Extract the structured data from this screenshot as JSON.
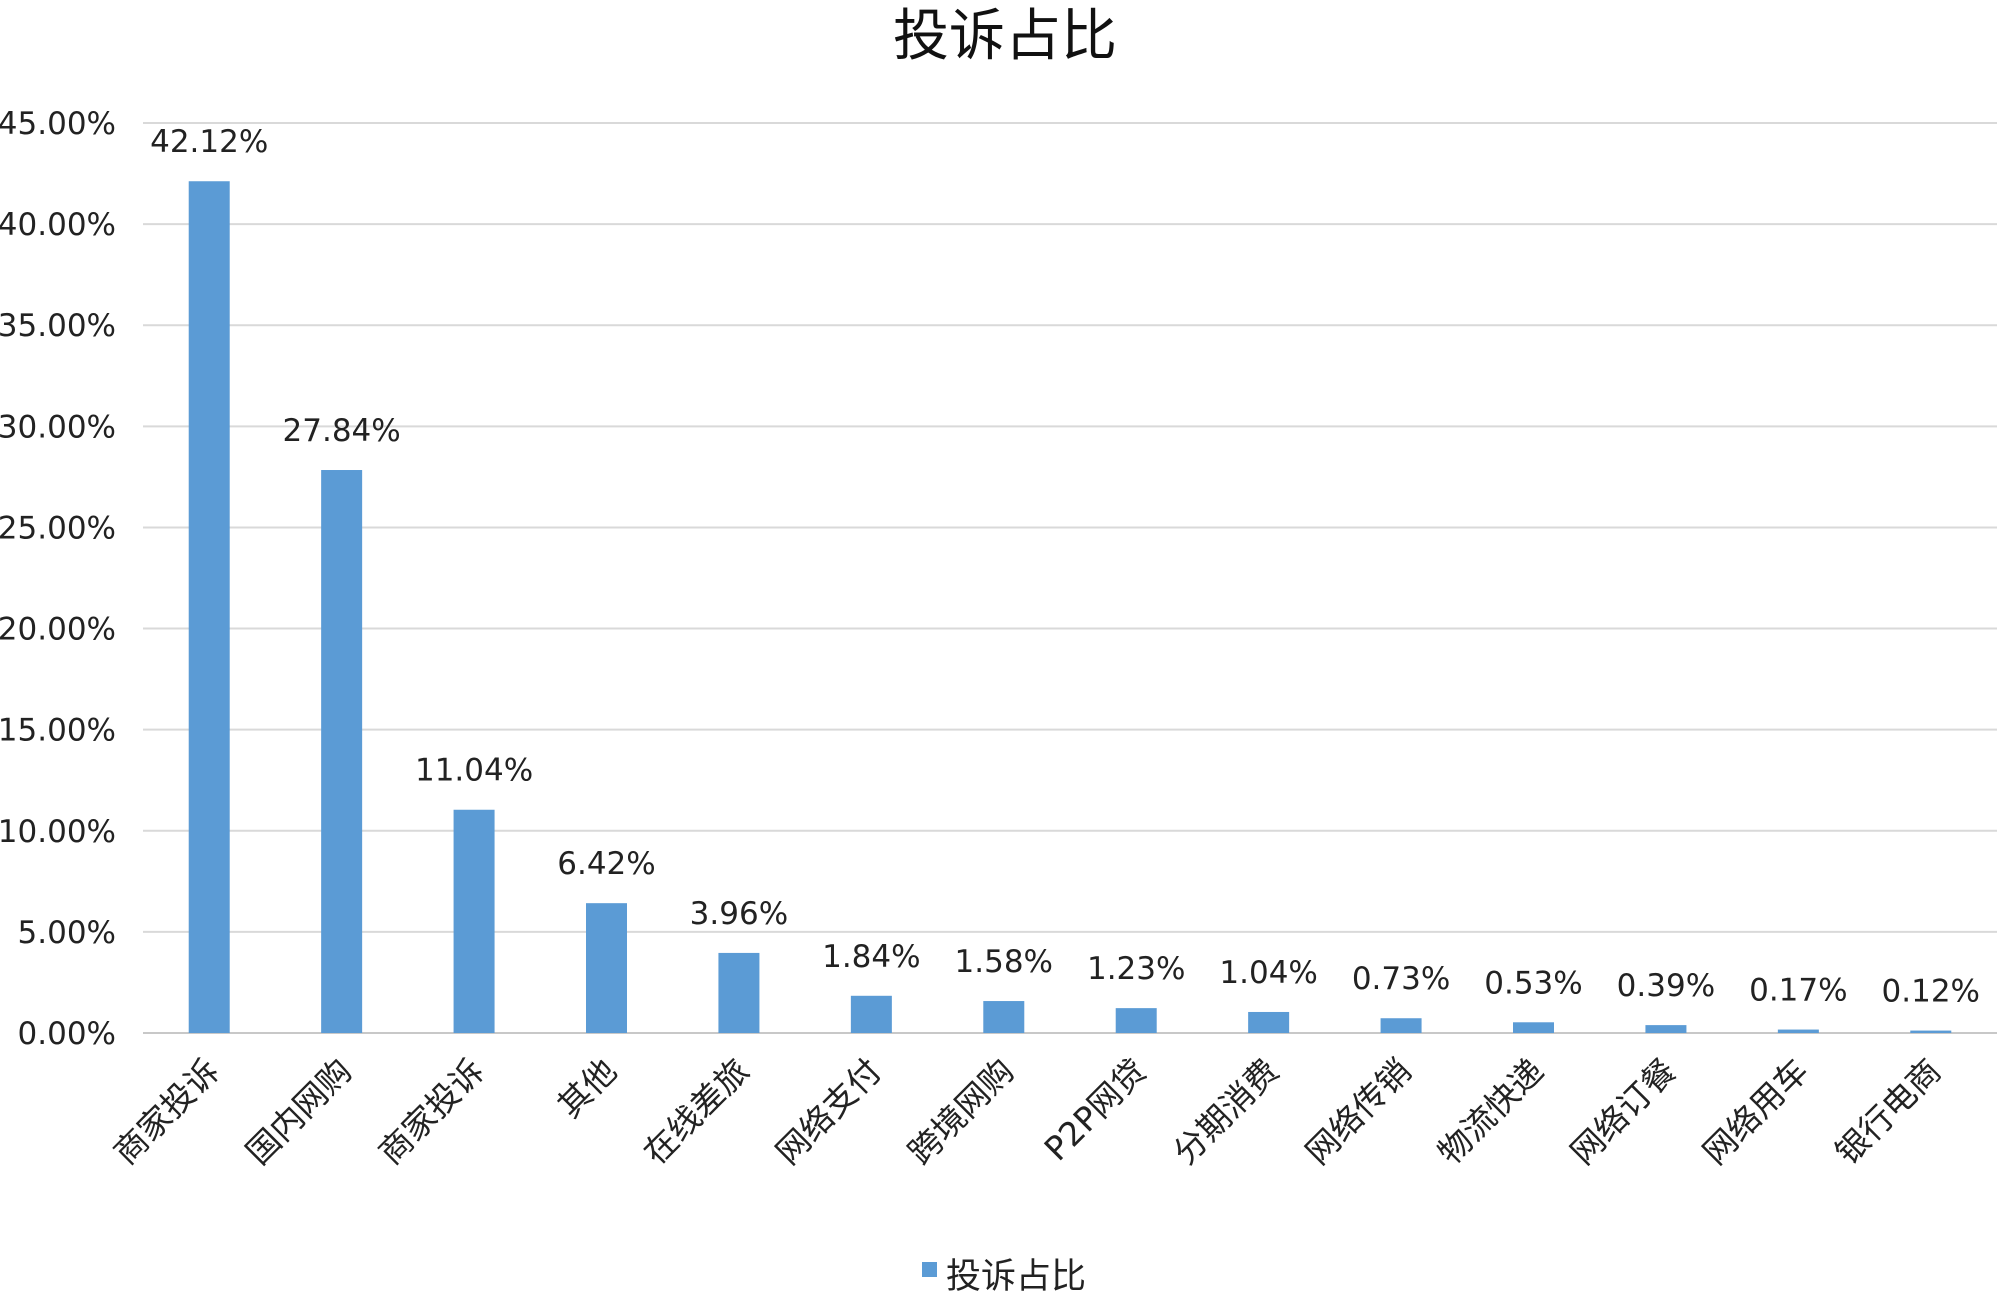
{
  "chart_data": {
    "type": "bar",
    "title": "投诉占比",
    "categories": [
      "商家投诉",
      "国内网购",
      "商家投诉",
      "其他",
      "在线差旅",
      "网络支付",
      "跨境网购",
      "P2P网贷",
      "分期消费",
      "网络传销",
      "物流快递",
      "网络订餐",
      "网络用车",
      "银行电商"
    ],
    "series": [
      {
        "name": "投诉占比",
        "values": [
          42.12,
          27.84,
          11.04,
          6.42,
          3.96,
          1.84,
          1.58,
          1.23,
          1.04,
          0.73,
          0.53,
          0.39,
          0.17,
          0.12
        ],
        "labels": [
          "42.12%",
          "27.84%",
          "11.04%",
          "6.42%",
          "3.96%",
          "1.84%",
          "1.58%",
          "1.23%",
          "1.04%",
          "0.73%",
          "0.53%",
          "0.39%",
          "0.17%",
          "0.12%"
        ]
      }
    ],
    "ylim": [
      0,
      45
    ],
    "yticks": [
      0,
      5,
      10,
      15,
      20,
      25,
      30,
      35,
      40,
      45
    ],
    "ytick_labels": [
      "0.00%",
      "5.00%",
      "10.00%",
      "15.00%",
      "20.00%",
      "25.00%",
      "30.00%",
      "35.00%",
      "40.00%",
      "45.00%"
    ],
    "grid": true,
    "legend_position": "bottom",
    "bar_color": "#5b9bd5"
  }
}
